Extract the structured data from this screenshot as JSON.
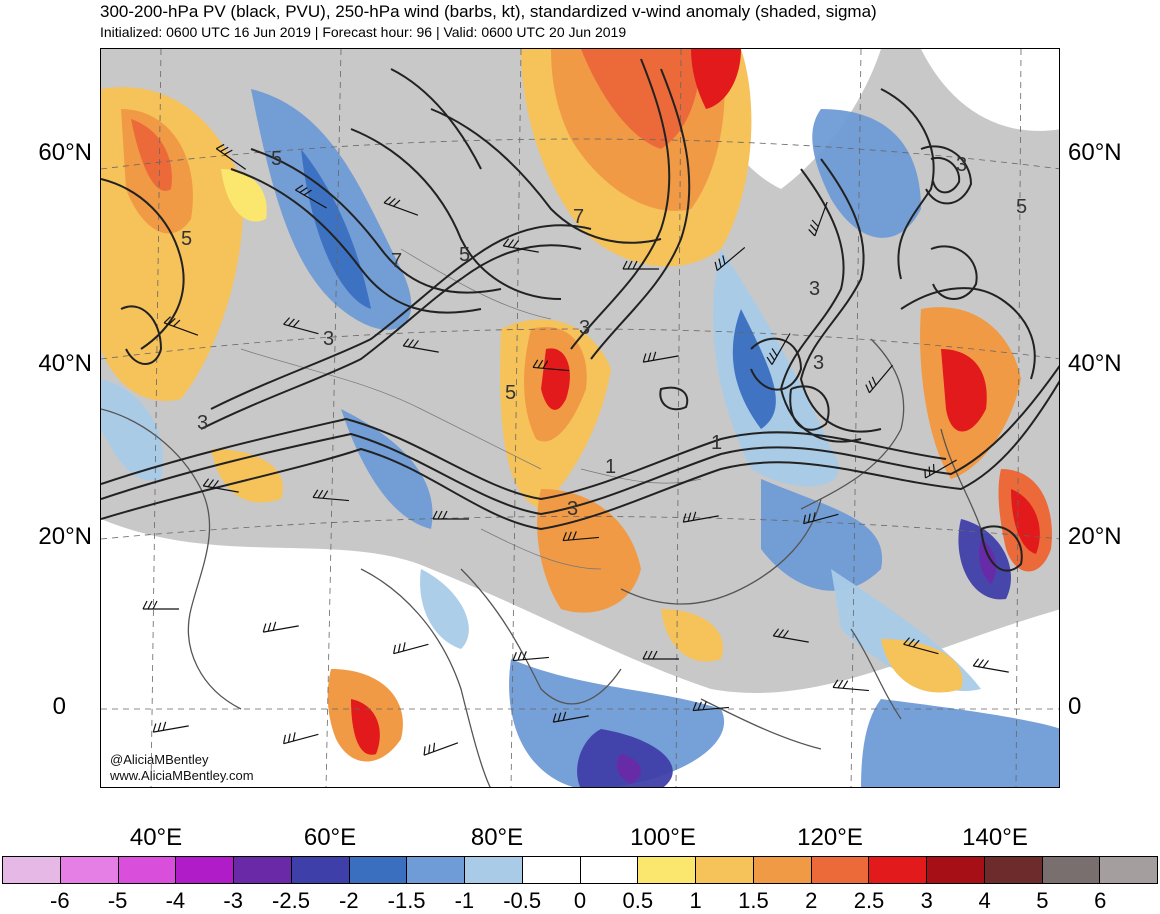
{
  "header": {
    "title": "300-200-hPa PV (black, PVU), 250-hPa wind (barbs, kt), standardized v-wind anomaly (shaded, sigma)",
    "subtitle": "Initialized: 0600 UTC 16 Jun 2019 | Forecast hour: 96 | Valid: 0600 UTC 20 Jun 2019"
  },
  "credit": {
    "handle": "@AliciaMBentley",
    "site": "www.AliciaMBentley.com"
  },
  "map": {
    "region": "Asia / Western Pacific",
    "lat_labels_left": [
      "60°N",
      "40°N",
      "20°N",
      "0"
    ],
    "lat_labels_right": [
      "60°N",
      "40°N",
      "20°N",
      "0"
    ],
    "lon_labels": [
      "40°E",
      "60°E",
      "80°E",
      "100°E",
      "120°E",
      "140°E"
    ],
    "pv_contour_labels": [
      "5",
      "7",
      "5",
      "3",
      "5",
      "7",
      "3",
      "3",
      "3",
      "5",
      "3",
      "3",
      "1",
      "1",
      "3",
      "5"
    ],
    "field_colors": {
      "land_gray": "#c6c6c6",
      "coast": "#555555",
      "pv_contour": "#222222",
      "barb": "#111111"
    }
  },
  "colorbar": {
    "labels": [
      "-6",
      "-5",
      "-4",
      "-3",
      "-2.5",
      "-2",
      "-1.5",
      "-1",
      "-0.5",
      "0",
      "0.5",
      "1",
      "1.5",
      "2",
      "2.5",
      "3",
      "4",
      "5",
      "6"
    ],
    "colors": [
      "#e6b8e6",
      "#e57fe6",
      "#d94fdc",
      "#b01cc8",
      "#6a2aa8",
      "#3f3faa",
      "#3a6fc0",
      "#6f9bd6",
      "#a9cbe8",
      "#ffffff",
      "#ffffff",
      "#fbe66e",
      "#f6c25a",
      "#f19a45",
      "#ec6a3a",
      "#e31a1c",
      "#a50f15",
      "#6d2b2b",
      "#7a6f6f",
      "#a59e9e"
    ]
  }
}
